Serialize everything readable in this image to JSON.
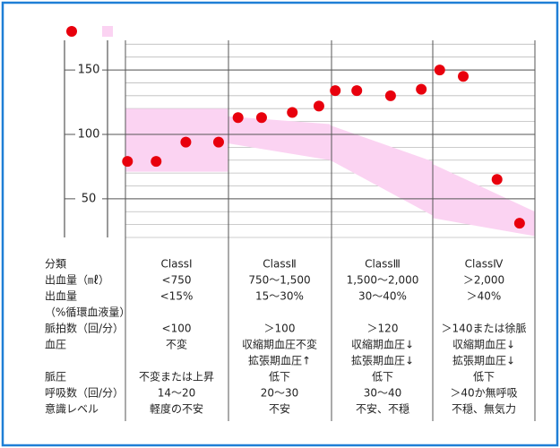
{
  "chart_data": {
    "type": "scatter",
    "xlim": [
      0,
      4
    ],
    "ylim": [
      20,
      173
    ],
    "yticks": [
      50,
      100,
      150
    ],
    "grid": true,
    "series": [
      {
        "type": "scatter",
        "color": "#e8000d",
        "x": [
          0.02,
          0.3,
          0.59,
          0.91,
          1.1,
          1.33,
          1.63,
          1.89,
          2.05,
          2.26,
          2.59,
          2.89,
          3.07,
          3.3,
          3.63,
          3.85
        ],
        "values": [
          79,
          79,
          94,
          94,
          113,
          113,
          117,
          122,
          134,
          134,
          130,
          135,
          150,
          145,
          65,
          31
        ]
      },
      {
        "type": "band",
        "color": "#fbd3f2",
        "x": [
          0,
          1,
          1,
          2,
          2,
          3,
          3,
          4
        ],
        "upper": [
          120,
          120,
          114,
          108,
          107,
          79,
          77,
          40
        ],
        "lower": [
          71,
          71,
          93,
          80,
          80,
          37,
          35,
          21
        ]
      }
    ]
  },
  "table": {
    "rows": [
      [
        "分類",
        "ClassⅠ",
        "ClassⅡ",
        "ClassⅢ",
        "ClassⅣ"
      ],
      [
        "出血量（㎖）",
        "<750",
        "750～1,500",
        "1,500～2,000",
        "＞2,000"
      ],
      [
        "出血量",
        "<15%",
        "15～30%",
        "30～40%",
        "＞40%"
      ],
      [
        "（%循環血液量）",
        null,
        null,
        null,
        null
      ],
      [
        "脈拍数（回/分）",
        "<100",
        "＞100",
        "＞120",
        "＞140または徐脈"
      ],
      [
        "血圧",
        "不変",
        "収縮期血圧不変",
        "収縮期血圧↓",
        "収縮期血圧↓"
      ],
      [
        null,
        null,
        "拡張期血圧↑",
        "拡張期血圧↓",
        "拡張期血圧↓"
      ],
      [
        "脈圧",
        "不変または上昇",
        "低下",
        "低下",
        "低下"
      ],
      [
        "呼吸数（回/分）",
        "14～20",
        "20～30",
        "30～40",
        "＞40か無呼吸"
      ],
      [
        "意識レベル",
        "軽度の不安",
        "不安",
        "不安、不穏",
        "不穏、無気力"
      ]
    ]
  }
}
